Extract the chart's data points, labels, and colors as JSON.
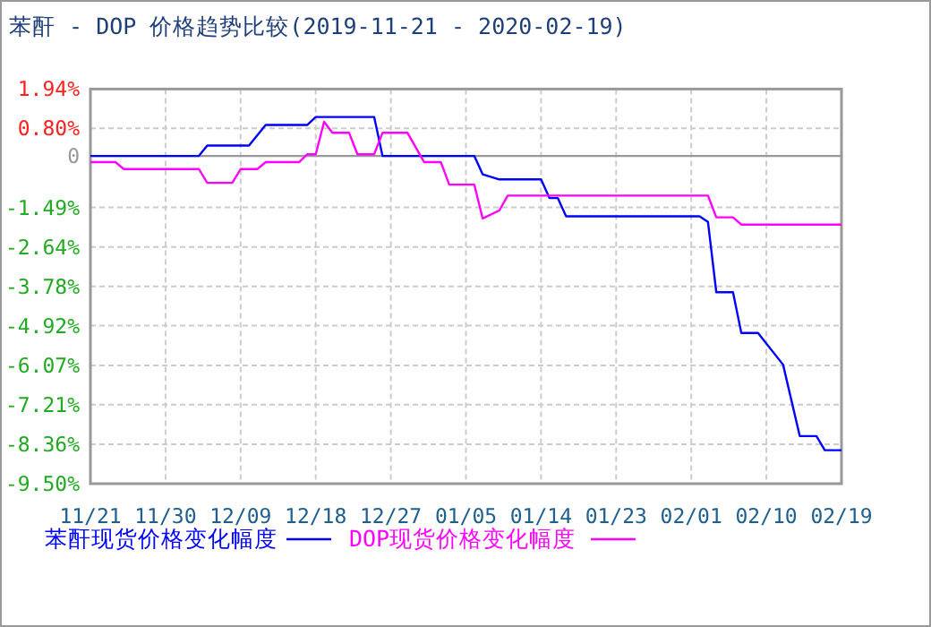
{
  "chart_data": {
    "type": "line",
    "title": "苯酐 - DOP 价格趋势比较(2019-11-21 - 2020-02-19)",
    "xlim": [
      "2019-11-21",
      "2020-02-19"
    ],
    "xticks": [
      {
        "value": "2019-11-21",
        "label": "11/21"
      },
      {
        "value": "2019-11-30",
        "label": "11/30"
      },
      {
        "value": "2019-12-09",
        "label": "12/09"
      },
      {
        "value": "2019-12-18",
        "label": "12/18"
      },
      {
        "value": "2019-12-27",
        "label": "12/27"
      },
      {
        "value": "2020-01-05",
        "label": "01/05"
      },
      {
        "value": "2020-01-14",
        "label": "01/14"
      },
      {
        "value": "2020-01-23",
        "label": "01/23"
      },
      {
        "value": "2020-02-01",
        "label": "02/01"
      },
      {
        "value": "2020-02-10",
        "label": "02/10"
      },
      {
        "value": "2020-02-19",
        "label": "02/19"
      }
    ],
    "ylim": [
      -9.5,
      1.94
    ],
    "yticks": [
      {
        "value": 1.94,
        "label": "1.94%"
      },
      {
        "value": 0.8,
        "label": "0.80%"
      },
      0,
      {
        "value": -1.49,
        "label": "-1.49%"
      },
      {
        "value": -2.64,
        "label": "-2.64%"
      },
      {
        "value": -3.78,
        "label": "-3.78%"
      },
      {
        "value": -4.92,
        "label": "-4.92%"
      },
      {
        "value": -6.07,
        "label": "-6.07%"
      },
      {
        "value": -7.21,
        "label": "-7.21%"
      },
      {
        "value": -8.36,
        "label": "-8.36%"
      },
      {
        "value": -9.5,
        "label": "-9.50%"
      }
    ],
    "grid": true,
    "legend": "bottom",
    "marker": "none",
    "line_style": "solid",
    "ref_lines": [
      {
        "axis": "y",
        "value": 0,
        "color": "#999999",
        "line_style": "solid"
      }
    ],
    "series": [
      {
        "name": "苯酐现货价格变化幅度",
        "color": "#0000ff",
        "x": [
          "2019-11-21",
          "2019-12-04",
          "2019-12-05",
          "2019-12-10",
          "2019-12-12",
          "2019-12-17",
          "2019-12-18",
          "2019-12-25",
          "2019-12-26",
          "2020-01-06",
          "2020-01-07",
          "2020-01-09",
          "2020-01-14",
          "2020-01-15",
          "2020-01-16",
          "2020-01-17",
          "2020-02-02",
          "2020-02-03",
          "2020-02-04",
          "2020-02-06",
          "2020-02-07",
          "2020-02-09",
          "2020-02-12",
          "2020-02-14",
          "2020-02-16",
          "2020-02-17",
          "2020-02-19"
        ],
        "values": [
          0,
          0,
          0.3,
          0.3,
          0.9,
          0.9,
          1.13,
          1.13,
          0,
          0,
          -0.53,
          -0.68,
          -0.68,
          -1.22,
          -1.22,
          -1.75,
          -1.75,
          -1.91,
          -3.95,
          -3.95,
          -5.13,
          -5.13,
          -6.05,
          -8.12,
          -8.12,
          -8.53,
          -8.53
        ]
      },
      {
        "name": "DOP现货价格变化幅度",
        "color": "#ff00ff",
        "x": [
          "2019-11-21",
          "2019-11-24",
          "2019-11-25",
          "2019-12-04",
          "2019-12-05",
          "2019-12-08",
          "2019-12-09",
          "2019-12-11",
          "2019-12-12",
          "2019-12-16",
          "2019-12-17",
          "2019-12-18",
          "2019-12-19",
          "2019-12-20",
          "2019-12-22",
          "2019-12-23",
          "2019-12-25",
          "2019-12-26",
          "2019-12-29",
          "2019-12-31",
          "2020-01-02",
          "2020-01-03",
          "2020-01-06",
          "2020-01-07",
          "2020-01-09",
          "2020-01-10",
          "2020-02-03",
          "2020-02-04",
          "2020-02-06",
          "2020-02-07",
          "2020-02-19"
        ],
        "values": [
          -0.18,
          -0.18,
          -0.38,
          -0.38,
          -0.78,
          -0.78,
          -0.38,
          -0.38,
          -0.18,
          -0.18,
          0.05,
          0.05,
          0.99,
          0.67,
          0.67,
          0.05,
          0.05,
          0.67,
          0.67,
          -0.18,
          -0.18,
          -0.83,
          -0.83,
          -1.81,
          -1.58,
          -1.15,
          -1.15,
          -1.78,
          -1.78,
          -1.99,
          -1.99
        ]
      }
    ]
  }
}
